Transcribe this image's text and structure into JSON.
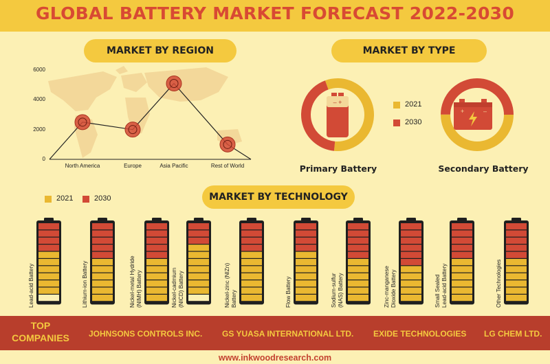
{
  "title": "GLOBAL BATTERY MARKET FORECAST 2022-2030",
  "sections": {
    "region": "MARKET BY REGION",
    "type": "MARKET BY TYPE",
    "technology": "MARKET BY TECHNOLOGY"
  },
  "colors": {
    "y2021": "#eab831",
    "y2030": "#d24a36",
    "accent": "#f4c93f",
    "dark_red": "#b83e2c"
  },
  "chart_data": [
    {
      "type": "line",
      "title": "MARKET BY REGION",
      "categories": [
        "North America",
        "Europe",
        "Asia Pacific",
        "Rest of World"
      ],
      "values": [
        2500,
        2000,
        5100,
        1000
      ],
      "ylim": [
        0,
        6000
      ],
      "yticks": [
        "0",
        "2000",
        "4000",
        "6000"
      ],
      "grid": false
    },
    {
      "type": "pie",
      "title": "MARKET BY TYPE",
      "legend": [
        "2021",
        "2030"
      ],
      "charts": [
        {
          "name": "Primary Battery",
          "icon": "primary-battery-icon",
          "slices": [
            {
              "label": "2021",
              "value": 57
            },
            {
              "label": "2030",
              "value": 43
            }
          ]
        },
        {
          "name": "Secondary Battery",
          "icon": "car-battery-icon",
          "slices": [
            {
              "label": "2021",
              "value": 50
            },
            {
              "label": "2030",
              "value": 50
            }
          ]
        }
      ]
    },
    {
      "type": "bar",
      "title": "MARKET BY TECHNOLOGY",
      "legend": [
        "2021",
        "2030"
      ],
      "segments_total": 11,
      "categories": [
        "Lead-acid Battery",
        "Lithium-ion Battery",
        "Nickel-metal Hydride (NIMH) Battery",
        "Nickel-cadmium (NICD) Battery",
        "Nickel-zinc (NIZn) Battery",
        "Flow Battery",
        "Sodium-sulfur (NAS) Battery",
        "Zinc-manganese Dioxide Battery",
        "Small Sealed Lead-acid Battery",
        "Other Technologies"
      ],
      "series": [
        {
          "name": "2021",
          "values": [
            6,
            6,
            6,
            7,
            7,
            7,
            6,
            5,
            6,
            6
          ]
        },
        {
          "name": "2030",
          "values": [
            4,
            5,
            5,
            3,
            4,
            4,
            5,
            6,
            5,
            5
          ]
        }
      ]
    }
  ],
  "legend": {
    "y2021": "2021",
    "y2030": "2030"
  },
  "tech_labels": [
    [
      "Lead-acid Battery"
    ],
    [
      "Lithium-ion Battery"
    ],
    [
      "Nickel-metal Hydride",
      "(NIMH) Battery"
    ],
    [
      "Nickel-cadmium",
      "(NICD) Battery"
    ],
    [
      "Nickel-zinc (NIZn)",
      "Battery"
    ],
    [
      "Flow Battery"
    ],
    [
      "Sodium-sulfur",
      "(NAS) Battery"
    ],
    [
      "Zinc-manganese",
      "Dioxide Battery"
    ],
    [
      "Small Sealed",
      "Lead-acid Battery"
    ],
    [
      "Other Technologies"
    ]
  ],
  "companies": {
    "label_line1": "TOP",
    "label_line2": "COMPANIES",
    "names": [
      "JOHNSONS CONTROLS INC.",
      "GS YUASA INTERNATIONAL LTD.",
      "EXIDE TECHNOLOGIES",
      "LG CHEM LTD."
    ]
  },
  "website": "www.inkwoodresearch.com"
}
